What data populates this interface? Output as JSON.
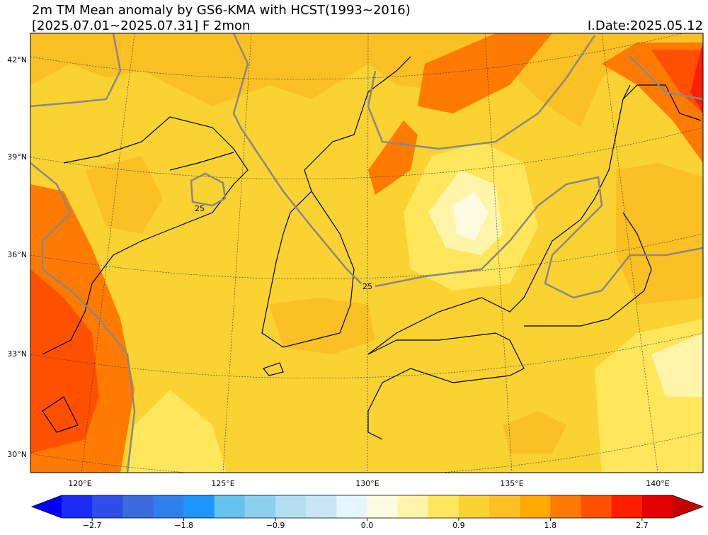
{
  "header": {
    "title": "2m TM Mean anomaly by GS6-KMA with HCST(1993~2016)",
    "subtitle": "[2025.07.01~2025.07.31] F 2mon",
    "issue_date": "I.Date:2025.05.12"
  },
  "map": {
    "lat_labels": [
      "42°N",
      "39°N",
      "36°N",
      "33°N",
      "30°N"
    ],
    "lon_labels": [
      "120°E",
      "125°E",
      "130°E",
      "135°E",
      "140°E"
    ],
    "contour_labels": [
      "25",
      "25"
    ]
  },
  "colorbar": {
    "tick_labels": [
      "−2.7",
      "−1.8",
      "−0.9",
      "0.0",
      "0.9",
      "1.8",
      "2.7"
    ],
    "colors": [
      "#1a2cf5",
      "#2d4fe8",
      "#3c6be0",
      "#2f80ef",
      "#1e96ff",
      "#64c3f0",
      "#8cd0ee",
      "#b4dff2",
      "#c8e6f5",
      "#e4f6ff",
      "#fffbe0",
      "#fff5aa",
      "#ffe65a",
      "#fad232",
      "#fbc024",
      "#ffaa00",
      "#ff7a00",
      "#ff5000",
      "#ff1e00",
      "#e20000"
    ],
    "extend_colors": [
      "#0000ff",
      "#c40000"
    ]
  }
}
